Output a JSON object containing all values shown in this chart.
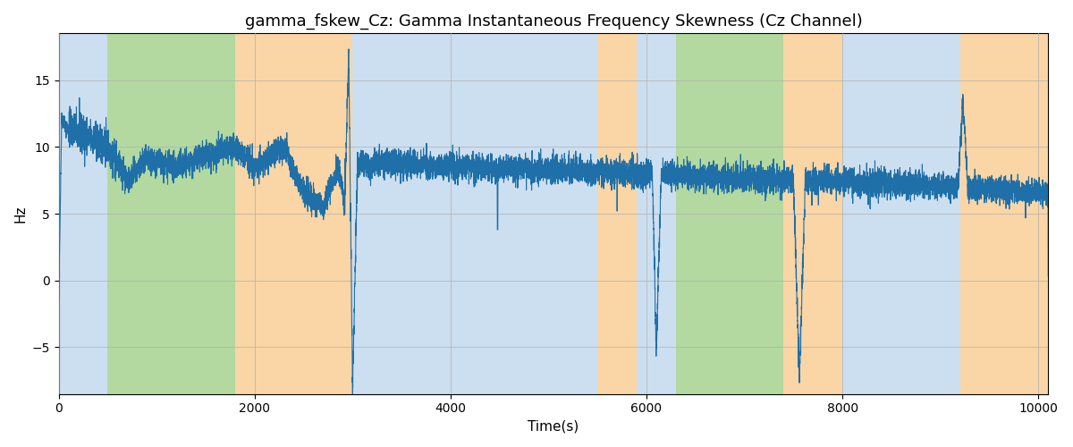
{
  "title": "gamma_fskew_Cz: Gamma Instantaneous Frequency Skewness (Cz Channel)",
  "xlabel": "Time(s)",
  "ylabel": "Hz",
  "xlim": [
    0,
    10100
  ],
  "ylim": [
    -8.5,
    18.5
  ],
  "yticks": [
    -5,
    0,
    5,
    10,
    15
  ],
  "xticks": [
    0,
    2000,
    4000,
    6000,
    8000,
    10000
  ],
  "line_color": "#1f6fa8",
  "line_width": 0.8,
  "background_color": "#ffffff",
  "grid_color": "#b0b0b0",
  "bg_bands": [
    {
      "xstart": 0,
      "xend": 500,
      "color": "#ccdff0"
    },
    {
      "xstart": 500,
      "xend": 1800,
      "color": "#b3d9a0"
    },
    {
      "xstart": 1800,
      "xend": 3000,
      "color": "#fad5a5"
    },
    {
      "xstart": 3000,
      "xend": 5500,
      "color": "#ccdff0"
    },
    {
      "xstart": 5500,
      "xend": 5900,
      "color": "#fad5a5"
    },
    {
      "xstart": 5900,
      "xend": 6300,
      "color": "#ccdff0"
    },
    {
      "xstart": 6300,
      "xend": 7400,
      "color": "#b3d9a0"
    },
    {
      "xstart": 7400,
      "xend": 8000,
      "color": "#fad5a5"
    },
    {
      "xstart": 8000,
      "xend": 9200,
      "color": "#ccdff0"
    },
    {
      "xstart": 9200,
      "xend": 10200,
      "color": "#fad5a5"
    }
  ],
  "seed": 42,
  "n_points": 10000
}
